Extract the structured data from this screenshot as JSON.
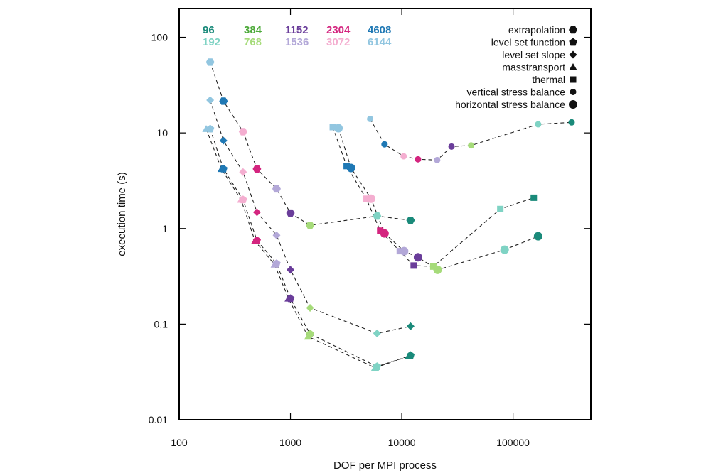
{
  "chart_data": {
    "type": "scatter",
    "xscale": "log",
    "yscale": "log",
    "xlabel": "DOF per MPI process",
    "ylabel": "execution time (s)",
    "xlim": [
      100,
      500000
    ],
    "ylim": [
      0.01,
      200
    ],
    "xticks": [
      {
        "value": 100,
        "label": "100"
      },
      {
        "value": 1000,
        "label": "1000"
      },
      {
        "value": 10000,
        "label": "10000"
      },
      {
        "value": 100000,
        "label": "100000"
      }
    ],
    "yticks": [
      {
        "value": 0.01,
        "label": "0.01"
      },
      {
        "value": 0.1,
        "label": "0.1"
      },
      {
        "value": 1,
        "label": "1"
      },
      {
        "value": 10,
        "label": "10"
      },
      {
        "value": 100,
        "label": "100"
      }
    ],
    "core_counts": [
      {
        "label": "96",
        "color": "#1a8a7a"
      },
      {
        "label": "192",
        "color": "#7fd3c4"
      },
      {
        "label": "384",
        "color": "#4daa3a"
      },
      {
        "label": "768",
        "color": "#a6db7a"
      },
      {
        "label": "1152",
        "color": "#6a3d9a"
      },
      {
        "label": "1536",
        "color": "#b3a8d8"
      },
      {
        "label": "2304",
        "color": "#d4257f"
      },
      {
        "label": "3072",
        "color": "#f4aed0"
      },
      {
        "label": "4608",
        "color": "#1f78b4"
      },
      {
        "label": "6144",
        "color": "#92c6e0"
      }
    ],
    "series": [
      {
        "name": "extrapolation",
        "marker": "hexagon",
        "points": [
          {
            "x": 190,
            "y": 55,
            "core": "6144"
          },
          {
            "x": 250,
            "y": 21.5,
            "core": "4608"
          },
          {
            "x": 375,
            "y": 10.3,
            "core": "3072"
          },
          {
            "x": 500,
            "y": 4.2,
            "core": "2304"
          },
          {
            "x": 750,
            "y": 2.6,
            "core": "1536"
          },
          {
            "x": 1000,
            "y": 1.45,
            "core": "1152"
          },
          {
            "x": 1500,
            "y": 1.08,
            "core": "768"
          },
          {
            "x": 6000,
            "y": 1.35,
            "core": "192"
          },
          {
            "x": 12000,
            "y": 1.22,
            "core": "96"
          }
        ]
      },
      {
        "name": "level set function",
        "marker": "pentagon",
        "points": [
          {
            "x": 190,
            "y": 11,
            "core": "6144"
          },
          {
            "x": 250,
            "y": 4.2,
            "core": "4608"
          },
          {
            "x": 375,
            "y": 2.0,
            "core": "3072"
          },
          {
            "x": 500,
            "y": 0.75,
            "core": "2304"
          },
          {
            "x": 750,
            "y": 0.43,
            "core": "1536"
          },
          {
            "x": 1000,
            "y": 0.185,
            "core": "1152"
          },
          {
            "x": 1500,
            "y": 0.079,
            "core": "768"
          },
          {
            "x": 6000,
            "y": 0.036,
            "core": "192"
          },
          {
            "x": 12000,
            "y": 0.047,
            "core": "96"
          }
        ]
      },
      {
        "name": "level set slope",
        "marker": "diamond",
        "points": [
          {
            "x": 190,
            "y": 22,
            "core": "6144"
          },
          {
            "x": 250,
            "y": 8.3,
            "core": "4608"
          },
          {
            "x": 375,
            "y": 3.9,
            "core": "3072"
          },
          {
            "x": 500,
            "y": 1.48,
            "core": "2304"
          },
          {
            "x": 750,
            "y": 0.85,
            "core": "1536"
          },
          {
            "x": 1000,
            "y": 0.37,
            "core": "1152"
          },
          {
            "x": 1500,
            "y": 0.148,
            "core": "768"
          },
          {
            "x": 6000,
            "y": 0.08,
            "core": "192"
          },
          {
            "x": 12000,
            "y": 0.095,
            "core": "96"
          }
        ]
      },
      {
        "name": "masstransport",
        "marker": "triangle",
        "points": [
          {
            "x": 175,
            "y": 11,
            "core": "6144"
          },
          {
            "x": 240,
            "y": 4.2,
            "core": "4608"
          },
          {
            "x": 360,
            "y": 2.0,
            "core": "3072"
          },
          {
            "x": 480,
            "y": 0.74,
            "core": "2304"
          },
          {
            "x": 720,
            "y": 0.42,
            "core": "1536"
          },
          {
            "x": 960,
            "y": 0.185,
            "core": "1152"
          },
          {
            "x": 1440,
            "y": 0.074,
            "core": "768"
          },
          {
            "x": 5760,
            "y": 0.035,
            "core": "192"
          },
          {
            "x": 11500,
            "y": 0.046,
            "core": "96"
          }
        ]
      },
      {
        "name": "thermal",
        "marker": "square",
        "points": [
          {
            "x": 2400,
            "y": 11.5,
            "core": "6144"
          },
          {
            "x": 3200,
            "y": 4.5,
            "core": "4608"
          },
          {
            "x": 4800,
            "y": 2.05,
            "core": "3072"
          },
          {
            "x": 6400,
            "y": 0.95,
            "core": "2304"
          },
          {
            "x": 9600,
            "y": 0.58,
            "core": "1536"
          },
          {
            "x": 12800,
            "y": 0.41,
            "core": "1152"
          },
          {
            "x": 19200,
            "y": 0.4,
            "core": "768"
          },
          {
            "x": 76800,
            "y": 1.6,
            "core": "192"
          },
          {
            "x": 153600,
            "y": 2.1,
            "core": "96"
          }
        ]
      },
      {
        "name": "vertical stress balance",
        "marker": "circle-small",
        "points": [
          {
            "x": 5200,
            "y": 14,
            "core": "6144"
          },
          {
            "x": 7000,
            "y": 7.6,
            "core": "4608"
          },
          {
            "x": 10400,
            "y": 5.7,
            "core": "3072"
          },
          {
            "x": 14000,
            "y": 5.3,
            "core": "2304"
          },
          {
            "x": 20800,
            "y": 5.2,
            "core": "1536"
          },
          {
            "x": 28000,
            "y": 7.2,
            "core": "1152"
          },
          {
            "x": 42000,
            "y": 7.4,
            "core": "768"
          },
          {
            "x": 168000,
            "y": 12.3,
            "core": "192"
          },
          {
            "x": 336000,
            "y": 12.9,
            "core": "96"
          }
        ]
      },
      {
        "name": "horizontal stress balance",
        "marker": "circle-large",
        "points": [
          {
            "x": 2700,
            "y": 11.2,
            "core": "6144"
          },
          {
            "x": 3500,
            "y": 4.3,
            "core": "4608"
          },
          {
            "x": 5300,
            "y": 2.05,
            "core": "3072"
          },
          {
            "x": 7000,
            "y": 0.89,
            "core": "2304"
          },
          {
            "x": 10500,
            "y": 0.58,
            "core": "1536"
          },
          {
            "x": 14000,
            "y": 0.5,
            "core": "1152"
          },
          {
            "x": 21000,
            "y": 0.37,
            "core": "768"
          },
          {
            "x": 84000,
            "y": 0.6,
            "core": "192"
          },
          {
            "x": 168000,
            "y": 0.83,
            "core": "96"
          }
        ]
      }
    ]
  }
}
